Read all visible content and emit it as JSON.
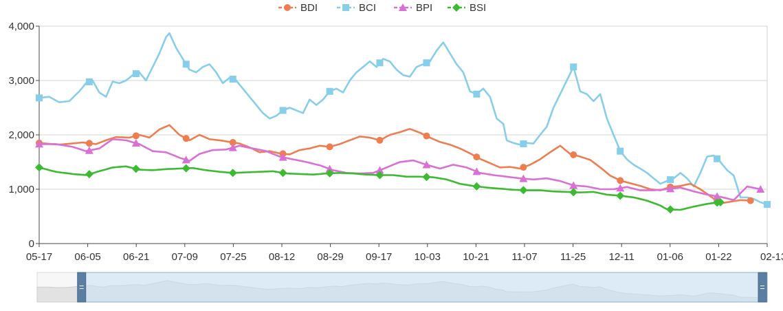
{
  "chart_data": {
    "type": "line",
    "title": "",
    "xlabel": "",
    "ylabel": "",
    "ylim": [
      0,
      4000
    ],
    "yticks": [
      0,
      1000,
      2000,
      3000,
      4000
    ],
    "ytick_labels": [
      "0",
      "1,000",
      "2,000",
      "3,000",
      "4,000"
    ],
    "grid": "horizontal",
    "legend_position": "top-center",
    "categories": [
      "05-17",
      "06-05",
      "06-21",
      "07-09",
      "07-25",
      "08-12",
      "08-29",
      "09-17",
      "10-03",
      "10-21",
      "11-07",
      "11-25",
      "12-11",
      "01-06",
      "01-22",
      "02-13"
    ],
    "x_count": 200,
    "series": [
      {
        "name": "BDI",
        "color": "#ee7e50",
        "marker": "circle",
        "anchors": [
          [
            0,
            1850
          ],
          [
            6,
            1820
          ],
          [
            13,
            1860
          ],
          [
            17,
            1830
          ],
          [
            20,
            1900
          ],
          [
            23,
            1960
          ],
          [
            27,
            1950
          ],
          [
            30,
            2000
          ],
          [
            33,
            1950
          ],
          [
            36,
            2100
          ],
          [
            39,
            2180
          ],
          [
            42,
            2000
          ],
          [
            45,
            1900
          ],
          [
            48,
            2000
          ],
          [
            51,
            1920
          ],
          [
            54,
            1900
          ],
          [
            57,
            1870
          ],
          [
            60,
            1840
          ],
          [
            63,
            1770
          ],
          [
            66,
            1680
          ],
          [
            69,
            1700
          ],
          [
            72,
            1660
          ],
          [
            75,
            1640
          ],
          [
            78,
            1720
          ],
          [
            81,
            1750
          ],
          [
            84,
            1800
          ],
          [
            87,
            1780
          ],
          [
            90,
            1830
          ],
          [
            93,
            1900
          ],
          [
            96,
            1970
          ],
          [
            99,
            1950
          ],
          [
            102,
            1900
          ],
          [
            105,
            2000
          ],
          [
            108,
            2050
          ],
          [
            111,
            2110
          ],
          [
            114,
            2040
          ],
          [
            117,
            1950
          ],
          [
            120,
            1870
          ],
          [
            123,
            1820
          ],
          [
            126,
            1750
          ],
          [
            129,
            1660
          ],
          [
            132,
            1560
          ],
          [
            135,
            1480
          ],
          [
            138,
            1400
          ],
          [
            141,
            1410
          ],
          [
            144,
            1380
          ],
          [
            147,
            1450
          ],
          [
            150,
            1550
          ],
          [
            153,
            1680
          ],
          [
            156,
            1800
          ],
          [
            159,
            1650
          ],
          [
            162,
            1600
          ],
          [
            165,
            1540
          ],
          [
            168,
            1400
          ],
          [
            171,
            1250
          ],
          [
            174,
            1160
          ],
          [
            177,
            1110
          ],
          [
            180,
            1060
          ],
          [
            183,
            1000
          ],
          [
            186,
            980
          ],
          [
            189,
            1040
          ],
          [
            192,
            1060
          ],
          [
            195,
            1100
          ],
          [
            198,
            1000
          ],
          [
            201,
            870
          ],
          [
            204,
            740
          ],
          [
            207,
            770
          ],
          [
            210,
            800
          ],
          [
            213,
            790
          ]
        ]
      },
      {
        "name": "BCI",
        "color": "#87ceeb",
        "marker": "square",
        "anchors": [
          [
            0,
            2680
          ],
          [
            3,
            2700
          ],
          [
            6,
            2600
          ],
          [
            9,
            2620
          ],
          [
            12,
            2800
          ],
          [
            14,
            2950
          ],
          [
            16,
            3000
          ],
          [
            18,
            2780
          ],
          [
            20,
            2700
          ],
          [
            22,
            2980
          ],
          [
            24,
            2950
          ],
          [
            26,
            3000
          ],
          [
            28,
            3100
          ],
          [
            30,
            3150
          ],
          [
            32,
            3000
          ],
          [
            34,
            3250
          ],
          [
            36,
            3500
          ],
          [
            38,
            3800
          ],
          [
            39,
            3870
          ],
          [
            41,
            3600
          ],
          [
            43,
            3400
          ],
          [
            45,
            3200
          ],
          [
            47,
            3150
          ],
          [
            49,
            3250
          ],
          [
            51,
            3300
          ],
          [
            53,
            3150
          ],
          [
            55,
            2950
          ],
          [
            57,
            3050
          ],
          [
            59,
            3000
          ],
          [
            61,
            2850
          ],
          [
            63,
            2700
          ],
          [
            65,
            2550
          ],
          [
            67,
            2400
          ],
          [
            69,
            2300
          ],
          [
            71,
            2350
          ],
          [
            73,
            2450
          ],
          [
            75,
            2500
          ],
          [
            77,
            2450
          ],
          [
            79,
            2400
          ],
          [
            81,
            2650
          ],
          [
            83,
            2550
          ],
          [
            85,
            2650
          ],
          [
            87,
            2800
          ],
          [
            89,
            2850
          ],
          [
            91,
            2780
          ],
          [
            93,
            3000
          ],
          [
            95,
            3150
          ],
          [
            97,
            3250
          ],
          [
            99,
            3350
          ],
          [
            101,
            3250
          ],
          [
            103,
            3400
          ],
          [
            105,
            3350
          ],
          [
            107,
            3200
          ],
          [
            109,
            3100
          ],
          [
            111,
            3070
          ],
          [
            113,
            3250
          ],
          [
            115,
            3300
          ],
          [
            117,
            3350
          ],
          [
            119,
            3550
          ],
          [
            121,
            3700
          ],
          [
            123,
            3500
          ],
          [
            125,
            3300
          ],
          [
            127,
            3150
          ],
          [
            129,
            2800
          ],
          [
            131,
            2750
          ],
          [
            133,
            2850
          ],
          [
            135,
            2700
          ],
          [
            137,
            2300
          ],
          [
            139,
            2200
          ],
          [
            140,
            1900
          ],
          [
            142,
            1850
          ],
          [
            144,
            1820
          ],
          [
            146,
            1850
          ],
          [
            148,
            1840
          ],
          [
            150,
            2000
          ],
          [
            152,
            2150
          ],
          [
            154,
            2500
          ],
          [
            156,
            2750
          ],
          [
            158,
            3000
          ],
          [
            160,
            3250
          ],
          [
            162,
            2800
          ],
          [
            164,
            2750
          ],
          [
            166,
            2620
          ],
          [
            168,
            2750
          ],
          [
            170,
            2300
          ],
          [
            172,
            2000
          ],
          [
            174,
            1700
          ],
          [
            176,
            1550
          ],
          [
            178,
            1450
          ],
          [
            180,
            1380
          ],
          [
            182,
            1300
          ],
          [
            184,
            1200
          ],
          [
            186,
            1100
          ],
          [
            188,
            1150
          ],
          [
            190,
            1200
          ],
          [
            192,
            1300
          ],
          [
            194,
            1200
          ],
          [
            196,
            1050
          ],
          [
            198,
            1300
          ],
          [
            200,
            1600
          ],
          [
            202,
            1620
          ],
          [
            204,
            1500
          ],
          [
            206,
            1350
          ],
          [
            208,
            1250
          ],
          [
            210,
            850
          ],
          [
            212,
            850
          ],
          [
            214,
            820
          ],
          [
            216,
            760
          ],
          [
            218,
            720
          ]
        ]
      },
      {
        "name": "BPI",
        "color": "#da70d6",
        "marker": "triangle",
        "anchors": [
          [
            0,
            1830
          ],
          [
            5,
            1830
          ],
          [
            10,
            1780
          ],
          [
            14,
            1700
          ],
          [
            18,
            1750
          ],
          [
            22,
            1920
          ],
          [
            26,
            1900
          ],
          [
            30,
            1830
          ],
          [
            34,
            1700
          ],
          [
            38,
            1680
          ],
          [
            42,
            1580
          ],
          [
            45,
            1520
          ],
          [
            48,
            1650
          ],
          [
            52,
            1720
          ],
          [
            56,
            1730
          ],
          [
            60,
            1800
          ],
          [
            64,
            1750
          ],
          [
            68,
            1700
          ],
          [
            72,
            1600
          ],
          [
            76,
            1550
          ],
          [
            80,
            1500
          ],
          [
            84,
            1440
          ],
          [
            88,
            1350
          ],
          [
            92,
            1300
          ],
          [
            96,
            1290
          ],
          [
            100,
            1300
          ],
          [
            104,
            1400
          ],
          [
            108,
            1500
          ],
          [
            112,
            1530
          ],
          [
            116,
            1450
          ],
          [
            120,
            1380
          ],
          [
            124,
            1450
          ],
          [
            128,
            1400
          ],
          [
            132,
            1300
          ],
          [
            136,
            1260
          ],
          [
            140,
            1230
          ],
          [
            144,
            1200
          ],
          [
            148,
            1180
          ],
          [
            152,
            1200
          ],
          [
            156,
            1150
          ],
          [
            160,
            1070
          ],
          [
            164,
            1050
          ],
          [
            168,
            1000
          ],
          [
            172,
            1000
          ],
          [
            176,
            1040
          ],
          [
            180,
            980
          ],
          [
            184,
            980
          ],
          [
            188,
            1000
          ],
          [
            192,
            1030
          ],
          [
            196,
            960
          ],
          [
            200,
            900
          ],
          [
            204,
            860
          ],
          [
            208,
            800
          ],
          [
            212,
            1050
          ],
          [
            216,
            1000
          ]
        ]
      },
      {
        "name": "BSI",
        "color": "#3cba31",
        "marker": "diamond",
        "anchors": [
          [
            0,
            1400
          ],
          [
            5,
            1320
          ],
          [
            10,
            1280
          ],
          [
            14,
            1260
          ],
          [
            18,
            1330
          ],
          [
            22,
            1400
          ],
          [
            26,
            1420
          ],
          [
            30,
            1360
          ],
          [
            34,
            1350
          ],
          [
            38,
            1370
          ],
          [
            42,
            1380
          ],
          [
            46,
            1390
          ],
          [
            50,
            1350
          ],
          [
            54,
            1320
          ],
          [
            58,
            1300
          ],
          [
            62,
            1310
          ],
          [
            66,
            1320
          ],
          [
            70,
            1330
          ],
          [
            74,
            1290
          ],
          [
            78,
            1280
          ],
          [
            82,
            1270
          ],
          [
            86,
            1290
          ],
          [
            90,
            1300
          ],
          [
            94,
            1290
          ],
          [
            98,
            1270
          ],
          [
            102,
            1260
          ],
          [
            106,
            1260
          ],
          [
            110,
            1230
          ],
          [
            114,
            1230
          ],
          [
            118,
            1220
          ],
          [
            122,
            1180
          ],
          [
            126,
            1100
          ],
          [
            130,
            1060
          ],
          [
            134,
            1030
          ],
          [
            138,
            1010
          ],
          [
            142,
            990
          ],
          [
            146,
            980
          ],
          [
            150,
            980
          ],
          [
            154,
            960
          ],
          [
            158,
            950
          ],
          [
            162,
            940
          ],
          [
            166,
            950
          ],
          [
            170,
            900
          ],
          [
            174,
            880
          ],
          [
            178,
            850
          ],
          [
            182,
            790
          ],
          [
            186,
            700
          ],
          [
            188,
            630
          ],
          [
            192,
            620
          ],
          [
            196,
            680
          ],
          [
            200,
            730
          ],
          [
            204,
            760
          ]
        ]
      }
    ],
    "navigator": {
      "range_start": 0.06,
      "range_end": 1.0
    }
  },
  "legend": [
    "BDI",
    "BCI",
    "BPI",
    "BSI"
  ]
}
